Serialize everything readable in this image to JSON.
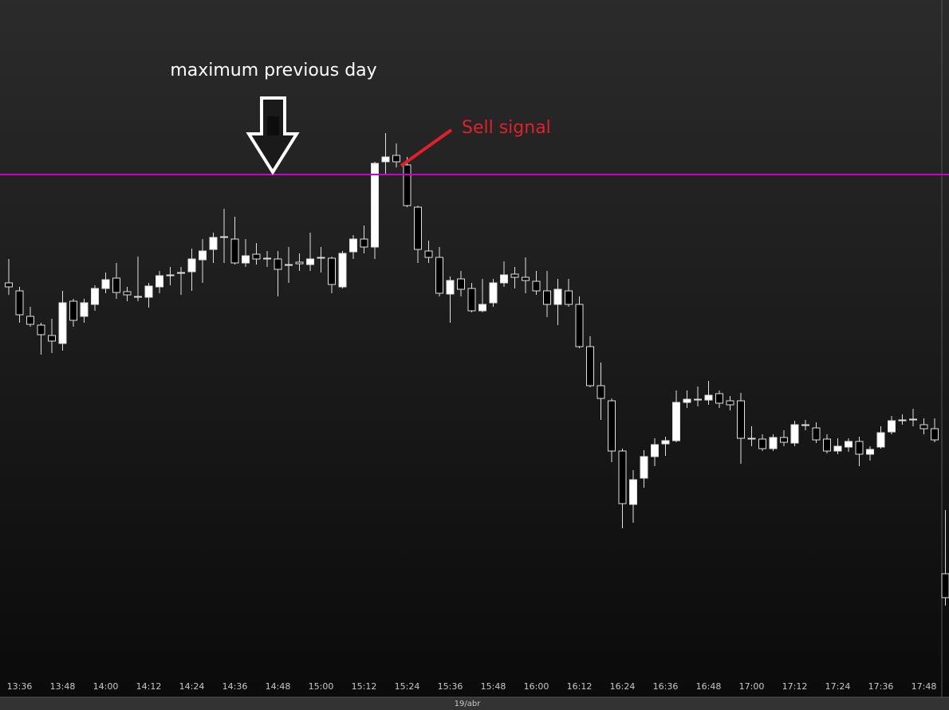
{
  "chart_data": {
    "type": "candlestick",
    "categories": [
      null,
      "13:36",
      null,
      null,
      null,
      "13:48",
      null,
      null,
      null,
      "14:00",
      null,
      null,
      null,
      "14:12",
      null,
      null,
      null,
      "14:24",
      null,
      null,
      null,
      "14:36",
      null,
      null,
      null,
      "14:48",
      null,
      null,
      null,
      "15:00",
      null,
      null,
      null,
      "15:12",
      null,
      null,
      null,
      "15:24",
      null,
      null,
      null,
      "15:36",
      null,
      null,
      null,
      "15:48",
      null,
      null,
      null,
      "16:00",
      null,
      null,
      null,
      "16:12",
      null,
      null,
      null,
      "16:24",
      null,
      null,
      null,
      "16:36",
      null,
      null,
      null,
      "16:48",
      null,
      null,
      null,
      "17:00",
      null,
      null,
      null,
      "17:12",
      null,
      null,
      null,
      "17:24",
      null,
      null,
      null,
      "17:36",
      null,
      null,
      null,
      "17:48",
      null,
      null
    ],
    "open": [
      545,
      535,
      503,
      492,
      479,
      469,
      522,
      503,
      518,
      538,
      551,
      534,
      528,
      527,
      540,
      555,
      558,
      559,
      574,
      587,
      603,
      600,
      570,
      581,
      576,
      575,
      568,
      571,
      568,
      577,
      576,
      540,
      584,
      600,
      590,
      697,
      705,
      693,
      640,
      585,
      577,
      531,
      550,
      538,
      510,
      520,
      545,
      556,
      552,
      547,
      535,
      518,
      535,
      518,
      465,
      416,
      397,
      334,
      267,
      300,
      327,
      343,
      347,
      395,
      399,
      398,
      406,
      397,
      397,
      350,
      349,
      337,
      351,
      344,
      367,
      363,
      349,
      334,
      339,
      346,
      330,
      339,
      358,
      373,
      374,
      367,
      362,
      180
    ],
    "high": [
      575,
      540,
      515,
      495,
      500,
      535,
      525,
      525,
      542,
      558,
      570,
      540,
      578,
      545,
      560,
      565,
      565,
      588,
      600,
      608,
      638,
      628,
      600,
      595,
      585,
      585,
      590,
      582,
      608,
      590,
      578,
      585,
      605,
      617,
      697,
      733,
      720,
      703,
      642,
      598,
      590,
      553,
      560,
      545,
      550,
      550,
      572,
      565,
      577,
      560,
      560,
      550,
      550,
      528,
      478,
      445,
      400,
      337,
      310,
      335,
      350,
      352,
      410,
      410,
      415,
      422,
      410,
      403,
      407,
      365,
      355,
      355,
      360,
      372,
      373,
      370,
      355,
      350,
      350,
      352,
      340,
      365,
      378,
      380,
      387,
      375,
      375,
      260
    ],
    "low": [
      530,
      495,
      490,
      455,
      457,
      460,
      490,
      495,
      510,
      532,
      525,
      522,
      522,
      514,
      532,
      542,
      530,
      535,
      545,
      570,
      570,
      568,
      565,
      568,
      565,
      528,
      545,
      560,
      560,
      558,
      532,
      538,
      575,
      582,
      575,
      682,
      690,
      640,
      570,
      570,
      528,
      495,
      528,
      508,
      508,
      515,
      540,
      538,
      532,
      530,
      502,
      492,
      515,
      463,
      414,
      373,
      320,
      237,
      244,
      288,
      315,
      328,
      345,
      388,
      390,
      392,
      388,
      385,
      318,
      340,
      334,
      334,
      340,
      340,
      360,
      344,
      331,
      330,
      333,
      315,
      322,
      337,
      355,
      367,
      365,
      355,
      345,
      140
    ],
    "close": [
      540,
      505,
      493,
      480,
      472,
      520,
      498,
      520,
      538,
      549,
      533,
      530,
      527,
      541,
      554,
      554,
      557,
      575,
      585,
      602,
      602,
      570,
      579,
      575,
      575,
      562,
      567,
      569,
      575,
      576,
      543,
      582,
      600,
      590,
      695,
      703,
      697,
      642,
      587,
      577,
      532,
      548,
      537,
      510,
      518,
      545,
      555,
      552,
      548,
      535,
      518,
      537,
      518,
      465,
      416,
      400,
      334,
      268,
      298,
      327,
      342,
      347,
      395,
      399,
      398,
      404,
      394,
      392,
      350,
      349,
      337,
      351,
      345,
      367,
      366,
      348,
      334,
      340,
      346,
      330,
      336,
      357,
      372,
      372,
      373,
      362,
      348,
      150
    ],
    "ylim": [
      9,
      900
    ],
    "up_color": "#ffffff",
    "down_color": "#000000",
    "wick_color": "#e0e0e0",
    "hline": {
      "value": 681,
      "color": "#cc00cc"
    },
    "date_label": "19/abr",
    "annotations": [
      {
        "text": "maximum previous day",
        "color": "#ffffff"
      },
      {
        "text": "Sell signal",
        "color": "#e0202a"
      }
    ]
  }
}
